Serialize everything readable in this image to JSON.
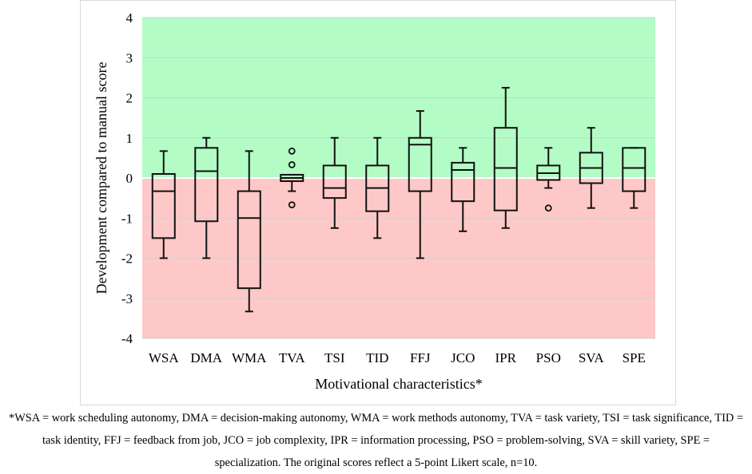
{
  "chart_data": {
    "type": "boxplot",
    "xlabel": "Motivational characteristics*",
    "ylabel": "Development compared to manual score",
    "ylim": [
      -4,
      4
    ],
    "yticks": [
      -4,
      -3,
      -2,
      -1,
      0,
      1,
      2,
      3,
      4
    ],
    "background_bands": [
      {
        "name": "positive",
        "from": 0,
        "to": 4,
        "color": "#b3fcc6"
      },
      {
        "name": "negative",
        "from": -4,
        "to": 0,
        "color": "#ffc8c8"
      }
    ],
    "categories": [
      "WSA",
      "DMA",
      "WMA",
      "TVA",
      "TSI",
      "TID",
      "FFJ",
      "JCO",
      "IPR",
      "PSO",
      "SVA",
      "SPE"
    ],
    "boxes": [
      {
        "category": "WSA",
        "min": -2.0,
        "q1": -1.5,
        "median": -0.33,
        "q3": 0.1,
        "max": 0.67,
        "outliers": []
      },
      {
        "category": "DMA",
        "min": -2.0,
        "q1": -1.08,
        "median": 0.17,
        "q3": 0.75,
        "max": 1.0,
        "outliers": []
      },
      {
        "category": "WMA",
        "min": -3.33,
        "q1": -2.75,
        "median": -1.0,
        "q3": -0.33,
        "max": 0.67,
        "outliers": []
      },
      {
        "category": "TVA",
        "min": -0.33,
        "q1": -0.08,
        "median": 0.0,
        "q3": 0.08,
        "max": 0.08,
        "outliers": [
          0.67,
          0.33,
          -0.67
        ]
      },
      {
        "category": "TSI",
        "min": -1.25,
        "q1": -0.5,
        "median": -0.25,
        "q3": 0.31,
        "max": 1.0,
        "outliers": []
      },
      {
        "category": "TID",
        "min": -1.5,
        "q1": -0.83,
        "median": -0.25,
        "q3": 0.31,
        "max": 1.0,
        "outliers": []
      },
      {
        "category": "FFJ",
        "min": -2.0,
        "q1": -0.33,
        "median": 0.83,
        "q3": 1.0,
        "max": 1.67,
        "outliers": []
      },
      {
        "category": "JCO",
        "min": -1.33,
        "q1": -0.58,
        "median": 0.2,
        "q3": 0.38,
        "max": 0.75,
        "outliers": []
      },
      {
        "category": "IPR",
        "min": -1.25,
        "q1": -0.81,
        "median": 0.25,
        "q3": 1.25,
        "max": 2.25,
        "outliers": []
      },
      {
        "category": "PSO",
        "min": -0.25,
        "q1": -0.05,
        "median": 0.12,
        "q3": 0.31,
        "max": 0.75,
        "outliers": [
          -0.75
        ]
      },
      {
        "category": "SVA",
        "min": -0.75,
        "q1": -0.13,
        "median": 0.25,
        "q3": 0.63,
        "max": 1.25,
        "outliers": []
      },
      {
        "category": "SPE",
        "min": -0.75,
        "q1": -0.33,
        "median": 0.25,
        "q3": 0.75,
        "max": 0.75,
        "outliers": []
      }
    ],
    "colors": {
      "box_stroke": "#111111",
      "grid": "#d0d0d0",
      "zero_line": "#ffffff"
    }
  },
  "footnote": "*WSA = work scheduling autonomy, DMA = decision-making autonomy, WMA = work methods autonomy, TVA = task variety, TSI = task significance, TID = task identity, FFJ = feedback from job, JCO = job complexity, IPR = information processing, PSO = problem-solving, SVA = skill variety, SPE = specialization. The original scores reflect a 5-point Likert scale, n=10."
}
